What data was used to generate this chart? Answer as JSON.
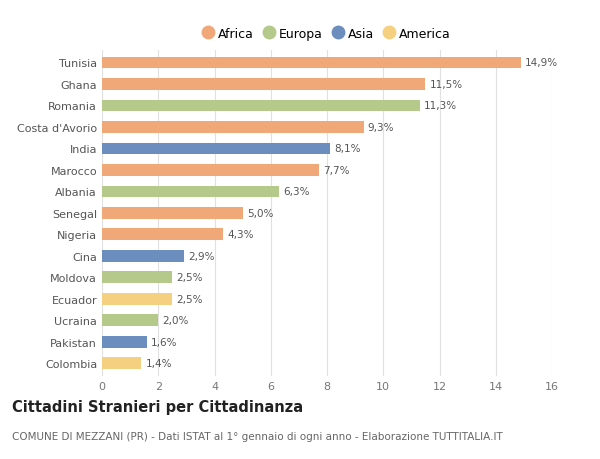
{
  "countries": [
    "Tunisia",
    "Ghana",
    "Romania",
    "Costa d'Avorio",
    "India",
    "Marocco",
    "Albania",
    "Senegal",
    "Nigeria",
    "Cina",
    "Moldova",
    "Ecuador",
    "Ucraina",
    "Pakistan",
    "Colombia"
  ],
  "values": [
    14.9,
    11.5,
    11.3,
    9.3,
    8.1,
    7.7,
    6.3,
    5.0,
    4.3,
    2.9,
    2.5,
    2.5,
    2.0,
    1.6,
    1.4
  ],
  "labels": [
    "14,9%",
    "11,5%",
    "11,3%",
    "9,3%",
    "8,1%",
    "7,7%",
    "6,3%",
    "5,0%",
    "4,3%",
    "2,9%",
    "2,5%",
    "2,5%",
    "2,0%",
    "1,6%",
    "1,4%"
  ],
  "continents": [
    "Africa",
    "Africa",
    "Europa",
    "Africa",
    "Asia",
    "Africa",
    "Europa",
    "Africa",
    "Africa",
    "Asia",
    "Europa",
    "America",
    "Europa",
    "Asia",
    "America"
  ],
  "colors": {
    "Africa": "#F0A878",
    "Europa": "#B5C98A",
    "Asia": "#6C8EBF",
    "America": "#F5D080"
  },
  "legend_order": [
    "Africa",
    "Europa",
    "Asia",
    "America"
  ],
  "title": "Cittadini Stranieri per Cittadinanza",
  "subtitle": "COMUNE DI MEZZANI (PR) - Dati ISTAT al 1° gennaio di ogni anno - Elaborazione TUTTITALIA.IT",
  "xlim": [
    0,
    16
  ],
  "xticks": [
    0,
    2,
    4,
    6,
    8,
    10,
    12,
    14,
    16
  ],
  "background_color": "#ffffff",
  "grid_color": "#e0e0e0",
  "bar_height": 0.55,
  "title_fontsize": 10.5,
  "subtitle_fontsize": 7.5,
  "label_fontsize": 7.5,
  "tick_fontsize": 8,
  "legend_fontsize": 9
}
